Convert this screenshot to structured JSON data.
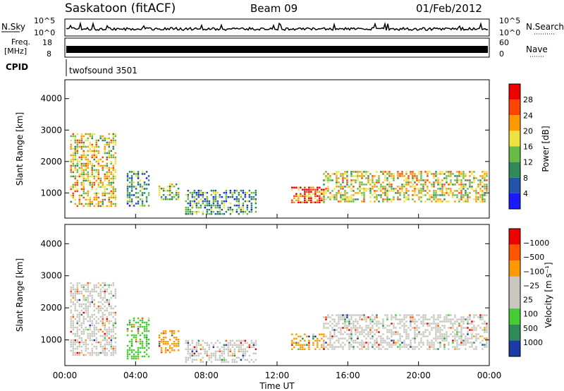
{
  "header": {
    "station": "Saskatoon (fitACF)",
    "beam": "Beam 09",
    "date": "01/Feb/2012"
  },
  "top_panels": {
    "nsky_label": "N.Sky",
    "nsky_ticks": [
      "10^5",
      "10^0"
    ],
    "nsearch_label": "N.Search",
    "nsearch_ticks": [
      "10^5",
      "10^0"
    ],
    "freq_label_line1": "Freq.",
    "freq_label_line2": "[MHz]",
    "freq_ticks": [
      "18",
      "8"
    ],
    "nave_label": "Nave",
    "nave_ticks": [
      "60",
      "0"
    ],
    "cpid_label": "CPID",
    "cpid_value": "twofsound 3501"
  },
  "chart_data": [
    {
      "type": "heatmap",
      "name": "power-panel",
      "ylabel": "Slant Range [km]",
      "yticks": [
        1000,
        2000,
        3000,
        4000
      ],
      "ylim": [
        200,
        4600
      ],
      "xlim": [
        0,
        24
      ],
      "colorbar_label": "Power [dB]",
      "colorbar_ticks": [
        "4",
        "8",
        "12",
        "16",
        "20",
        "24",
        "28"
      ],
      "colorbar_colors": [
        "#1a1aff",
        "#2255aa",
        "#2e8b57",
        "#66bb44",
        "#f0e040",
        "#ff9900",
        "#ff4400",
        "#ee0000"
      ],
      "echo_regions": [
        {
          "t0": 0.3,
          "t1": 2.9,
          "r0": 600,
          "r1": 2900,
          "level": 4
        },
        {
          "t0": 3.5,
          "t1": 4.8,
          "r0": 600,
          "r1": 1700,
          "level": 2
        },
        {
          "t0": 5.3,
          "t1": 6.4,
          "r0": 800,
          "r1": 1300,
          "level": 3
        },
        {
          "t0": 6.8,
          "t1": 10.8,
          "r0": 300,
          "r1": 1100,
          "level": 2
        },
        {
          "t0": 12.8,
          "t1": 14.6,
          "r0": 700,
          "r1": 1200,
          "level": 6
        },
        {
          "t0": 14.6,
          "t1": 23.9,
          "r0": 700,
          "r1": 1700,
          "level": 4
        }
      ]
    },
    {
      "type": "heatmap",
      "name": "velocity-panel",
      "ylabel": "Slant Range [km]",
      "yticks": [
        1000,
        2000,
        3000,
        4000
      ],
      "ylim": [
        200,
        4600
      ],
      "xlim": [
        0,
        24
      ],
      "xticks": [
        "00:00",
        "04:00",
        "08:00",
        "12:00",
        "16:00",
        "20:00",
        "00:00"
      ],
      "xlabel": "Time UT",
      "colorbar_label": "Velocity [m s⁻¹]",
      "colorbar_ticks": [
        "1000",
        "500",
        "100",
        "25",
        "−25",
        "−100",
        "−500",
        "−1000"
      ],
      "colorbar_colors": [
        "#1a3aa8",
        "#2e8b57",
        "#44cc33",
        "#c8c8c0",
        "#c8c8c0",
        "#ff9900",
        "#ff5500",
        "#ee0000"
      ],
      "echo_regions": [
        {
          "t0": 0.3,
          "t1": 2.9,
          "r0": 500,
          "r1": 2800,
          "color": "#c8c8c0"
        },
        {
          "t0": 3.5,
          "t1": 4.8,
          "r0": 400,
          "r1": 1700,
          "color": "#44cc33"
        },
        {
          "t0": 5.3,
          "t1": 6.4,
          "r0": 600,
          "r1": 1300,
          "color": "#ff9900"
        },
        {
          "t0": 6.8,
          "t1": 10.8,
          "r0": 300,
          "r1": 1000,
          "color": "#c8c8c0"
        },
        {
          "t0": 12.8,
          "t1": 14.6,
          "r0": 700,
          "r1": 1200,
          "color": "#ff9900"
        },
        {
          "t0": 14.6,
          "t1": 23.9,
          "r0": 700,
          "r1": 1800,
          "color": "#c8c8c0"
        }
      ]
    }
  ]
}
